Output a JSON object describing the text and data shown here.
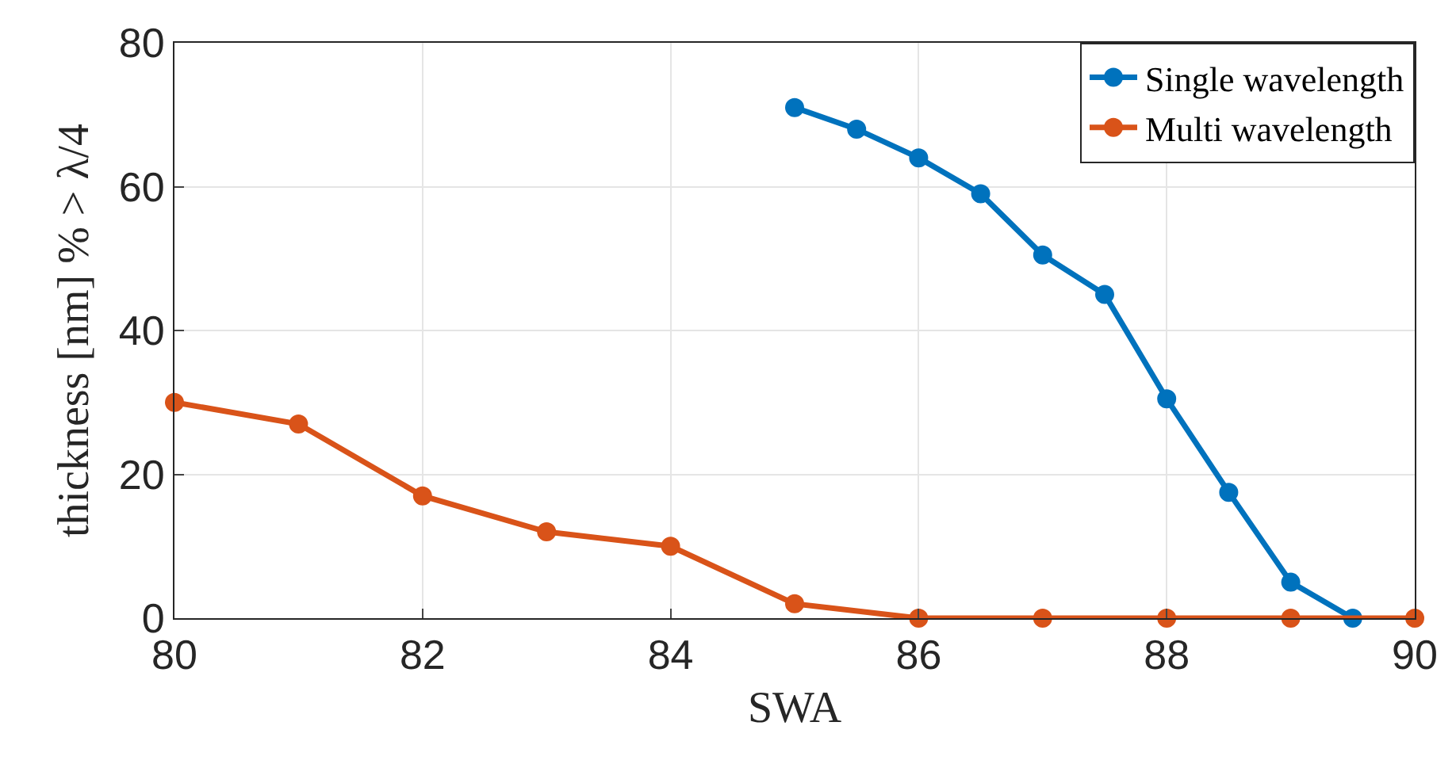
{
  "chart_data": {
    "type": "line",
    "xlabel": "SWA",
    "ylabel": "thickness [nm] % > λ/4",
    "xlim": [
      80,
      90
    ],
    "xticks": [
      80,
      82,
      84,
      86,
      88,
      90
    ],
    "ylim": [
      0,
      80
    ],
    "yticks": [
      0,
      20,
      40,
      60,
      80
    ],
    "grid": true,
    "legend": "top right",
    "marker": "circle",
    "line_style": "solid",
    "series": [
      {
        "name": "Single wavelength",
        "color": "#0072bd",
        "x": [
          85,
          85.5,
          86,
          86.5,
          87,
          87.5,
          88,
          88.5,
          89,
          89.5
        ],
        "values": [
          71,
          68,
          64,
          59,
          50.5,
          45,
          30.5,
          17.5,
          5,
          0
        ]
      },
      {
        "name": "Multi wavelength",
        "color": "#d95319",
        "x": [
          80,
          81,
          82,
          83,
          84,
          85,
          86,
          87,
          88,
          89,
          90
        ],
        "values": [
          30,
          27,
          17,
          12,
          10,
          2,
          0,
          0,
          0,
          0,
          0
        ]
      }
    ]
  }
}
